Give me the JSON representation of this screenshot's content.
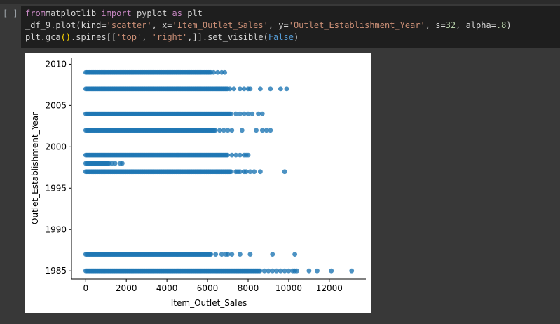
{
  "cell": {
    "gutter": "[ ]",
    "code_lines": [
      [
        [
          "kw",
          "from"
        ],
        [
          "",
          "matplotlib "
        ],
        [
          "kw",
          "import"
        ],
        [
          "",
          " pyplot "
        ],
        [
          "kw",
          "as"
        ],
        [
          "",
          " plt"
        ]
      ],
      [
        [
          "",
          "_df_9.plot(kind="
        ],
        [
          "str",
          "'scatter'"
        ],
        [
          "",
          ", x="
        ],
        [
          "str",
          "'Item_Outlet_Sales'"
        ],
        [
          "",
          ", y="
        ],
        [
          "str",
          "'Outlet_Establishment_Year'"
        ],
        [
          "",
          ", s="
        ],
        [
          "num",
          "32"
        ],
        [
          "",
          ", alpha="
        ],
        [
          "num",
          ".8"
        ],
        [
          "",
          ")"
        ]
      ],
      [
        [
          "",
          "plt.gca"
        ],
        [
          "paren",
          "()"
        ],
        [
          "",
          ".spines[["
        ],
        [
          "str",
          "'top'"
        ],
        [
          "",
          ", "
        ],
        [
          "str",
          "'right'"
        ],
        [
          "",
          ",]].set_visible("
        ],
        [
          "kwb",
          "False"
        ],
        [
          "",
          ")"
        ]
      ]
    ]
  },
  "chart_data": {
    "type": "scatter",
    "title": "",
    "xlabel": "Item_Outlet_Sales",
    "ylabel": "Outlet_Establishment_Year",
    "xlim": [
      -700,
      13800
    ],
    "ylim": [
      1984,
      2010.8
    ],
    "xticks": [
      0,
      2000,
      4000,
      6000,
      8000,
      10000,
      12000
    ],
    "yticks": [
      1985,
      1990,
      1995,
      2000,
      2005,
      2010
    ],
    "grid": false,
    "point_color": "#1f77b4",
    "alpha": 0.8,
    "marker_size": 32,
    "bands": [
      {
        "year": 2009,
        "dense_until": 6200,
        "extra": [
          6300,
          6500,
          6700,
          6850
        ]
      },
      {
        "year": 2007,
        "dense_until": 7000,
        "extra": [
          7100,
          7300,
          7600,
          7800,
          8000,
          8100,
          8600,
          9100,
          9600,
          9900
        ]
      },
      {
        "year": 2004,
        "dense_until": 7200,
        "extra": [
          7400,
          7600,
          7800,
          8000,
          8200,
          8500,
          8700
        ]
      },
      {
        "year": 2002,
        "dense_until": 6400,
        "extra": [
          6600,
          6800,
          7000,
          7200,
          7700,
          8400,
          8700,
          8900,
          9100
        ]
      },
      {
        "year": 1999,
        "dense_until": 7000,
        "extra": [
          7200,
          7400,
          7600,
          7800,
          7900,
          8000
        ]
      },
      {
        "year": 1998,
        "dense_until": 1200,
        "extra": [
          1300,
          1450,
          1700,
          1800
        ]
      },
      {
        "year": 1997,
        "dense_until": 7200,
        "extra": [
          7400,
          7500,
          7600,
          7800,
          7900,
          8100,
          8300,
          8600,
          9800
        ]
      },
      {
        "year": 1987,
        "dense_until": 6200,
        "extra": [
          6400,
          6700,
          6900,
          7000,
          7200,
          7600,
          8100,
          9200,
          10300
        ]
      },
      {
        "year": 1985,
        "dense_until": 8600,
        "extra": [
          8800,
          9000,
          9200,
          9400,
          9600,
          9800,
          10000,
          10200,
          10300,
          10400,
          11000,
          11400,
          12100,
          13100
        ]
      }
    ]
  }
}
